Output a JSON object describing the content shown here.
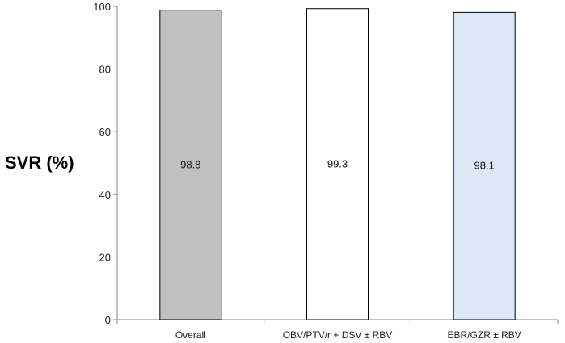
{
  "chart_data": {
    "type": "bar",
    "title": "",
    "ylabel": "SVR (%)",
    "xlabel": "",
    "ylim": [
      0,
      100
    ],
    "yticks": [
      0,
      20,
      40,
      60,
      80,
      100
    ],
    "categories": [
      "Overall",
      "OBV/PTV/r + DSV ± RBV",
      "EBR/GZR ± RBV"
    ],
    "values": [
      98.8,
      99.3,
      98.1
    ],
    "data_labels": [
      "98.8",
      "99.3",
      "98.1"
    ],
    "bar_colors": [
      "#c0c0c0",
      "#ffffff",
      "#dce8f5"
    ],
    "grid": false,
    "legend": "none"
  }
}
